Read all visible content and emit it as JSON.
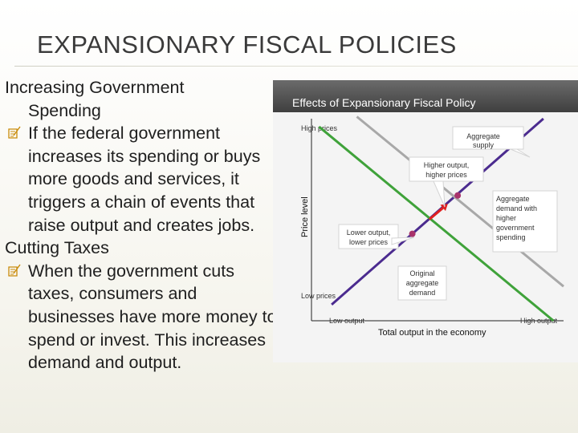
{
  "slide": {
    "title": "EXPANSIONARY FISCAL POLICIES"
  },
  "body": {
    "heading1_line1": "Increasing Government",
    "heading1_line2": "Spending",
    "bullet1": "If the federal government increases its spending or buys more goods and services, it triggers a chain of events that raise output and creates jobs.",
    "heading2": "Cutting Taxes",
    "bullet2": "When the government cuts taxes, consumers and businesses have more money to spend or invest. This increases demand and output."
  },
  "icons": {
    "bullet": "scroll-quill-icon"
  },
  "colors": {
    "supply_line": "#4b2b8f",
    "original_demand_line": "#3fa23a",
    "new_demand_line": "#a8a8a8",
    "equilibrium_point": "#a8336b",
    "shift_arrow": "#e02020"
  },
  "chart_data": {
    "type": "line",
    "title": "Effects of Expansionary Fiscal Policy",
    "xlabel": "Total output in the economy",
    "ylabel": "Price level",
    "x_tick_labels": [
      "Low output",
      "High output"
    ],
    "y_tick_labels": [
      "High prices",
      "Low prices"
    ],
    "xlim": [
      0,
      100
    ],
    "ylim": [
      0,
      100
    ],
    "grid": false,
    "series": [
      {
        "name": "Aggregate supply",
        "x": [
          8,
          92
        ],
        "y": [
          8,
          100
        ]
      },
      {
        "name": "Original aggregate demand",
        "x": [
          3,
          96
        ],
        "y": [
          96,
          0
        ]
      },
      {
        "name": "Aggregate demand with higher government spending",
        "x": [
          18,
          100
        ],
        "y": [
          101,
          17
        ]
      }
    ],
    "points": [
      {
        "x": 40,
        "y": 43,
        "label": "Lower output, lower prices"
      },
      {
        "x": 58,
        "y": 62,
        "label": "Higher output, higher prices"
      }
    ],
    "annotations": {
      "high_prices": "High prices",
      "low_prices": "Low prices",
      "aggregate_supply": "Aggregate supply",
      "higher_output": "Higher output, higher prices",
      "lower_output": "Lower output, lower prices",
      "ad_with_spending": "Aggregate demand with higher government spending",
      "original_ad": "Original aggregate demand"
    }
  }
}
